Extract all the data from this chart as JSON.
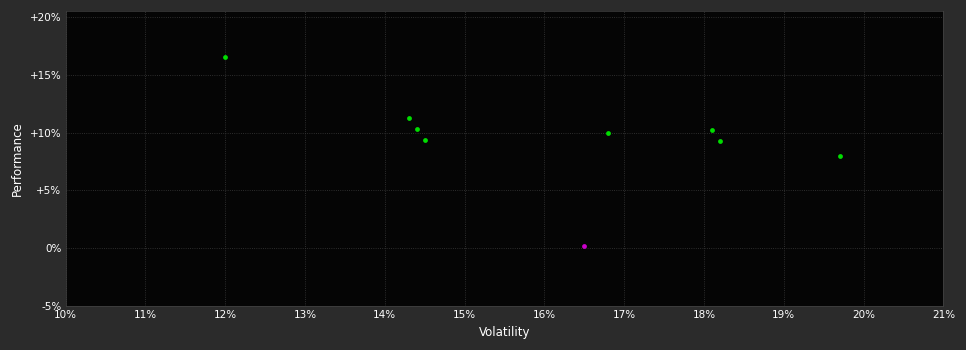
{
  "background_color": "#2b2b2b",
  "plot_bg_color": "#050505",
  "grid_color": "#3a3a3a",
  "text_color": "#ffffff",
  "xlabel": "Volatility",
  "ylabel": "Performance",
  "xlim": [
    0.1,
    0.21
  ],
  "ylim": [
    -0.05,
    0.205
  ],
  "xticks": [
    0.1,
    0.11,
    0.12,
    0.13,
    0.14,
    0.15,
    0.16,
    0.17,
    0.18,
    0.19,
    0.2,
    0.21
  ],
  "yticks": [
    -0.05,
    0.0,
    0.05,
    0.1,
    0.15,
    0.2
  ],
  "ytick_labels": [
    "-5%",
    "0%",
    "+5%",
    "+10%",
    "+15%",
    "+20%"
  ],
  "xtick_labels": [
    "10%",
    "11%",
    "12%",
    "13%",
    "14%",
    "15%",
    "16%",
    "17%",
    "18%",
    "19%",
    "20%",
    "21%"
  ],
  "green_points": [
    [
      0.12,
      0.165
    ],
    [
      0.143,
      0.113
    ],
    [
      0.144,
      0.103
    ],
    [
      0.145,
      0.094
    ],
    [
      0.168,
      0.1
    ],
    [
      0.181,
      0.102
    ],
    [
      0.182,
      0.093
    ],
    [
      0.197,
      0.08
    ]
  ],
  "magenta_points": [
    [
      0.165,
      0.002
    ]
  ],
  "point_size": 12,
  "green_color": "#00dd00",
  "magenta_color": "#cc00cc"
}
